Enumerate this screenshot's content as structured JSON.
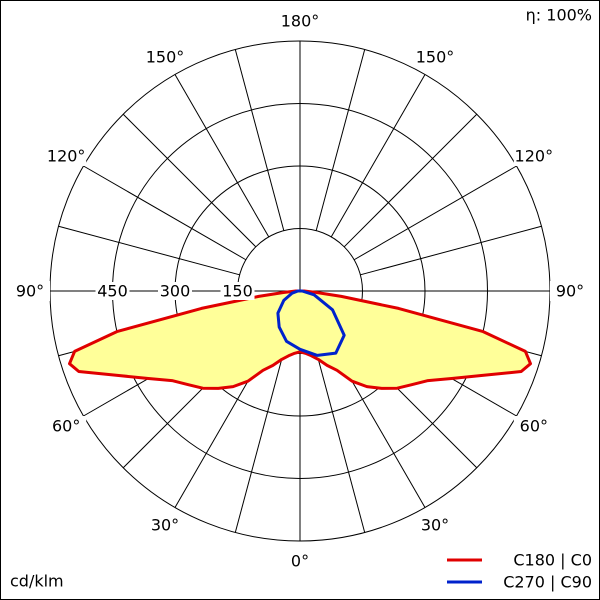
{
  "chart_data": {
    "type": "polar",
    "efficiency_label": "η: 100%",
    "unit_label": "cd/klm",
    "rlim": [
      0,
      600
    ],
    "rticks": [
      150,
      300,
      450
    ],
    "angle_ticks": [
      {
        "value": 0,
        "label": "0°"
      },
      {
        "value": 30,
        "label": "30°"
      },
      {
        "value": 60,
        "label": "60°"
      },
      {
        "value": 90,
        "label": "90°"
      },
      {
        "value": 120,
        "label": "120°"
      },
      {
        "value": 150,
        "label": "150°"
      },
      {
        "value": 180,
        "label": "180°"
      }
    ],
    "series": [
      {
        "name": "C180 | C0",
        "color": "#e00000",
        "fill": "#ffff99",
        "x": [
          -90,
          -85,
          -82.5,
          -80,
          -77.5,
          -75,
          -72.5,
          -70,
          -65,
          -60,
          -55,
          -50,
          -45,
          -40,
          -35,
          -30,
          -25,
          -20,
          -15,
          -10,
          -5,
          0,
          5,
          10,
          15,
          20,
          25,
          30,
          35,
          40,
          45,
          50,
          55,
          60,
          65,
          70,
          72.5,
          75,
          77.5,
          80,
          82.5,
          85,
          90
        ],
        "values": [
          10,
          40,
          100,
          240,
          450,
          560,
          580,
          565,
          480,
          420,
          375,
          350,
          330,
          305,
          280,
          250,
          210,
          190,
          170,
          158,
          150,
          146,
          150,
          158,
          170,
          190,
          210,
          250,
          280,
          305,
          330,
          350,
          375,
          420,
          480,
          565,
          580,
          560,
          450,
          240,
          100,
          40,
          10
        ]
      },
      {
        "name": "C270 | C90",
        "color": "#0022cc",
        "x": [
          -90,
          -75,
          -60,
          -45,
          -30,
          -15,
          0,
          15,
          30,
          45,
          60,
          75,
          90
        ],
        "values": [
          5,
          20,
          45,
          75,
          100,
          125,
          140,
          160,
          172,
          150,
          90,
          35,
          5
        ]
      }
    ]
  }
}
